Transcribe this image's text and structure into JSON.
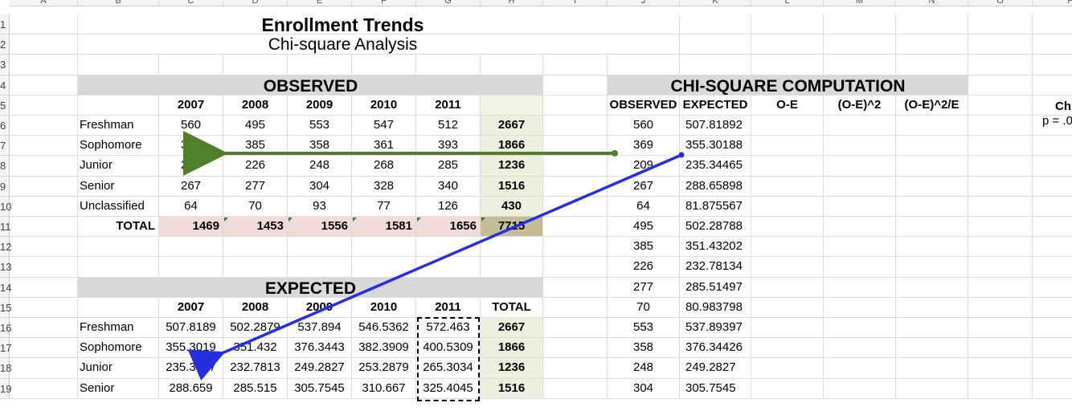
{
  "column_headers": [
    "A",
    "B",
    "C",
    "D",
    "E",
    "F",
    "G",
    "H",
    "I",
    "J",
    "K",
    "L",
    "M",
    "N",
    "O",
    "P"
  ],
  "row_numbers": [
    "1",
    "2",
    "3",
    "4",
    "5",
    "6",
    "7",
    "8",
    "9",
    "10",
    "11",
    "12",
    "13",
    "14",
    "15",
    "16",
    "17",
    "18",
    "19"
  ],
  "title": "Enrollment Trends",
  "subtitle": "Chi-square Analysis",
  "observed": {
    "header": "OBSERVED",
    "years": [
      "2007",
      "2008",
      "2009",
      "2010",
      "2011",
      "TOTAL"
    ],
    "rows": [
      {
        "label": "Freshman",
        "values": [
          "560",
          "495",
          "553",
          "547",
          "512",
          "2667"
        ]
      },
      {
        "label": "Sophomore",
        "values": [
          "369",
          "385",
          "358",
          "361",
          "393",
          "1866"
        ]
      },
      {
        "label": "Junior",
        "values": [
          "209",
          "226",
          "248",
          "268",
          "285",
          "1236"
        ]
      },
      {
        "label": "Senior",
        "values": [
          "267",
          "277",
          "304",
          "328",
          "340",
          "1516"
        ]
      },
      {
        "label": "Unclassified",
        "values": [
          "64",
          "70",
          "93",
          "77",
          "126",
          "430"
        ]
      }
    ],
    "total_label": "TOTAL",
    "totals": [
      "1469",
      "1453",
      "1556",
      "1581",
      "1656",
      "7715"
    ]
  },
  "expected": {
    "header": "EXPECTED",
    "years": [
      "2007",
      "2008",
      "2009",
      "2010",
      "2011",
      "TOTAL"
    ],
    "rows": [
      {
        "label": "Freshman",
        "values": [
          "507.8189",
          "502.2879",
          "537.894",
          "546.5362",
          "572.463",
          "2667"
        ]
      },
      {
        "label": "Sophomore",
        "values": [
          "355.3019",
          "351.432",
          "376.3443",
          "382.3909",
          "400.5309",
          "1866"
        ]
      },
      {
        "label": "Junior",
        "values": [
          "235.3447",
          "232.7813",
          "249.2827",
          "253.2879",
          "265.3034",
          "1236"
        ]
      },
      {
        "label": "Senior",
        "values": [
          "288.659",
          "285.515",
          "305.7545",
          "310.667",
          "325.4045",
          "1516"
        ]
      }
    ]
  },
  "chi": {
    "header": "CHI-SQUARE COMPUTATION",
    "columns": [
      "OBSERVED",
      "EXPECTED",
      "O-E",
      "(O-E)^2",
      "(O-E)^2/E"
    ],
    "rows": [
      [
        "560",
        "507.81892"
      ],
      [
        "369",
        "355.30188"
      ],
      [
        "209",
        "235.34465"
      ],
      [
        "267",
        "288.65898"
      ],
      [
        "64",
        "81.875567"
      ],
      [
        "495",
        "502.28788"
      ],
      [
        "385",
        "351.43202"
      ],
      [
        "226",
        "232.78134"
      ],
      [
        "277",
        "285.51497"
      ],
      [
        "70",
        "80.983798"
      ],
      [
        "553",
        "537.89397"
      ],
      [
        "358",
        "376.34426"
      ],
      [
        "248",
        "249.2827"
      ],
      [
        "304",
        "305.7545"
      ]
    ]
  },
  "side_panel": {
    "label": "Chi",
    "p_label": "p = .0"
  },
  "colors": {
    "section_grey": "#d9d9d9",
    "totals_pink": "#f2dcdb",
    "grand_total_tan": "#c4bd97",
    "total_col_green": "#ebf1de",
    "arrow_green": "#4f7f2a",
    "arrow_blue": "#2430e0"
  }
}
